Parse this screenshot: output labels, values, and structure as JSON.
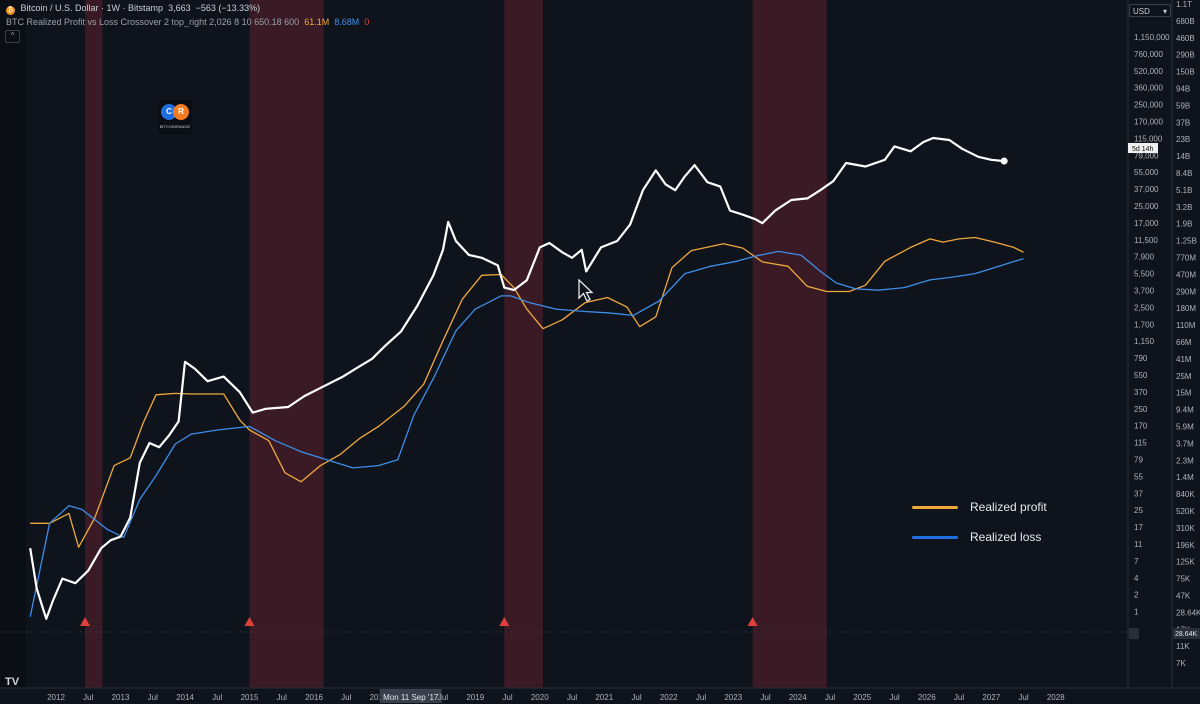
{
  "header": {
    "symbol": "Bitcoin / U.S. Dollar · 1W · Bitstamp",
    "price": "3,663",
    "change": "−563 (−13.33%)",
    "indicator": "BTC Realized Profit vs Loss Crossover 2 top_right 2,026 8 10 650.18 600",
    "ind_profit_value": "61.1M",
    "ind_loss_value": "8.68M",
    "ind_zero": "0",
    "chevron": "^",
    "currency": "USD",
    "currency_arrow": "▾"
  },
  "logo": {
    "mark_left": "C",
    "mark_right": "R",
    "caption": "BITCOINRANGE"
  },
  "colors": {
    "price": "#ffffff",
    "profit": "#f0a83c",
    "loss": "#3d8ee8",
    "band": "#4a1f28",
    "marker": "#e0403c",
    "bg": "#0f131c"
  },
  "chart_data": {
    "type": "line",
    "x_axis": {
      "ticks": [
        "2012",
        "Jul",
        "2013",
        "Jul",
        "2014",
        "Jul",
        "2015",
        "Jul",
        "2016",
        "Jul",
        "2017",
        "Mon 11 Sep '17",
        "Jul",
        "2019",
        "Jul",
        "2020",
        "Jul",
        "2021",
        "Jul",
        "2022",
        "Jul",
        "2023",
        "Jul",
        "2024",
        "Jul",
        "2025",
        "Jul",
        "2026",
        "Jul",
        "2027",
        "Jul",
        "2028"
      ],
      "range": [
        2011.3,
        2029.2
      ]
    },
    "y_axis_price": {
      "scale": "log",
      "ticks": [
        "1,150,000",
        "760,000",
        "520,000",
        "360,000",
        "250,000",
        "170,000",
        "115,000",
        "79,000",
        "55,000",
        "37,000",
        "25,000",
        "17,000",
        "11,500",
        "7,900",
        "5,500",
        "3,700",
        "2,500",
        "1,700",
        "1,150",
        "790",
        "550",
        "370",
        "250",
        "170",
        "115",
        "79",
        "55",
        "37",
        "25",
        "17",
        "11",
        "7",
        "4",
        "2",
        "1"
      ],
      "current_label": "5d 14h"
    },
    "y_axis_realized": {
      "scale": "log",
      "ticks": [
        "1.1T",
        "680B",
        "460B",
        "290B",
        "150B",
        "94B",
        "59B",
        "37B",
        "23B",
        "14B",
        "8.4B",
        "5.1B",
        "3.2B",
        "1.9B",
        "1.25B",
        "770M",
        "470M",
        "290M",
        "180M",
        "110M",
        "66M",
        "41M",
        "25M",
        "15M",
        "9.4M",
        "5.9M",
        "3.7M",
        "2.3M",
        "1.4M",
        "840K",
        "520K",
        "310K",
        "196K",
        "125K",
        "75K",
        "47K",
        "28.64K",
        "17K",
        "11K",
        "7K"
      ],
      "current_label": "28.64K"
    },
    "series": [
      {
        "name": "Realized profit",
        "points": [
          [
            2011.6,
            0.3
          ],
          [
            2011.9,
            0.3
          ],
          [
            2012.2,
            0.4
          ],
          [
            2012.35,
            0.15
          ],
          [
            2012.6,
            0.35
          ],
          [
            2012.9,
            1.6
          ],
          [
            2013.15,
            2.0
          ],
          [
            2013.35,
            5.5
          ],
          [
            2013.55,
            12.5
          ],
          [
            2013.85,
            13.0
          ],
          [
            2014.1,
            12.8
          ],
          [
            2014.6,
            12.8
          ],
          [
            2014.85,
            6
          ],
          [
            2015.0,
            4.5
          ],
          [
            2015.3,
            3.3
          ],
          [
            2015.55,
            1.3
          ],
          [
            2015.8,
            1.0
          ],
          [
            2016.1,
            1.6
          ],
          [
            2016.4,
            2.2
          ],
          [
            2016.7,
            3.5
          ],
          [
            2017.0,
            5.0
          ],
          [
            2017.4,
            9.0
          ],
          [
            2017.7,
            17
          ],
          [
            2018.0,
            60
          ],
          [
            2018.3,
            200
          ],
          [
            2018.6,
            400
          ],
          [
            2018.9,
            410
          ],
          [
            2019.1,
            280
          ],
          [
            2019.3,
            150
          ],
          [
            2019.55,
            85
          ],
          [
            2019.85,
            110
          ],
          [
            2020.2,
            180
          ],
          [
            2020.55,
            210
          ],
          [
            2020.85,
            160
          ],
          [
            2021.05,
            90
          ],
          [
            2021.3,
            120
          ],
          [
            2021.55,
            500
          ],
          [
            2021.85,
            820
          ],
          [
            2022.35,
            1000
          ],
          [
            2022.65,
            880
          ],
          [
            2022.95,
            590
          ],
          [
            2023.35,
            520
          ],
          [
            2023.65,
            290
          ],
          [
            2023.95,
            250
          ],
          [
            2024.3,
            250
          ],
          [
            2024.55,
            300
          ],
          [
            2024.85,
            600
          ],
          [
            2025.25,
            900
          ],
          [
            2025.55,
            1150
          ],
          [
            2025.75,
            1050
          ],
          [
            2026.0,
            1150
          ],
          [
            2026.25,
            1200
          ],
          [
            2026.55,
            1050
          ],
          [
            2026.85,
            900
          ],
          [
            2027.0,
            780
          ]
        ]
      },
      {
        "name": "Realized loss",
        "points": [
          [
            2011.6,
            0.02
          ],
          [
            2011.9,
            0.3
          ],
          [
            2012.2,
            0.5
          ],
          [
            2012.4,
            0.45
          ],
          [
            2012.8,
            0.25
          ],
          [
            2013.05,
            0.2
          ],
          [
            2013.3,
            0.6
          ],
          [
            2013.55,
            1.2
          ],
          [
            2013.85,
            3.0
          ],
          [
            2014.1,
            4.0
          ],
          [
            2014.5,
            4.5
          ],
          [
            2015.0,
            5.0
          ],
          [
            2015.4,
            3.3
          ],
          [
            2015.8,
            2.4
          ],
          [
            2016.2,
            1.9
          ],
          [
            2016.6,
            1.5
          ],
          [
            2017.0,
            1.6
          ],
          [
            2017.3,
            1.9
          ],
          [
            2017.55,
            7
          ],
          [
            2017.85,
            20
          ],
          [
            2018.2,
            80
          ],
          [
            2018.5,
            150
          ],
          [
            2018.9,
            220
          ],
          [
            2019.05,
            220
          ],
          [
            2019.35,
            180
          ],
          [
            2019.75,
            150
          ],
          [
            2020.2,
            140
          ],
          [
            2020.55,
            135
          ],
          [
            2020.95,
            125
          ],
          [
            2021.35,
            190
          ],
          [
            2021.75,
            420
          ],
          [
            2022.15,
            520
          ],
          [
            2022.55,
            600
          ],
          [
            2022.85,
            700
          ],
          [
            2023.2,
            800
          ],
          [
            2023.55,
            720
          ],
          [
            2023.85,
            450
          ],
          [
            2024.1,
            320
          ],
          [
            2024.4,
            270
          ],
          [
            2024.75,
            260
          ],
          [
            2025.15,
            280
          ],
          [
            2025.55,
            350
          ],
          [
            2025.9,
            380
          ],
          [
            2026.25,
            420
          ],
          [
            2026.55,
            500
          ],
          [
            2027.0,
            650
          ]
        ]
      },
      {
        "name": "Bitcoin price",
        "points": [
          [
            2011.6,
            10
          ],
          [
            2011.7,
            4
          ],
          [
            2011.8,
            2.5
          ],
          [
            2011.85,
            2
          ],
          [
            2011.95,
            3.0
          ],
          [
            2012.1,
            5
          ],
          [
            2012.3,
            4.5
          ],
          [
            2012.5,
            6
          ],
          [
            2012.7,
            10
          ],
          [
            2012.85,
            12
          ],
          [
            2013.0,
            13
          ],
          [
            2013.15,
            20
          ],
          [
            2013.3,
            70
          ],
          [
            2013.45,
            110
          ],
          [
            2013.6,
            100
          ],
          [
            2013.75,
            130
          ],
          [
            2013.9,
            180
          ],
          [
            2014.0,
            700
          ],
          [
            2014.15,
            600
          ],
          [
            2014.35,
            450
          ],
          [
            2014.6,
            500
          ],
          [
            2014.85,
            350
          ],
          [
            2015.05,
            220
          ],
          [
            2015.25,
            240
          ],
          [
            2015.6,
            250
          ],
          [
            2015.85,
            320
          ],
          [
            2016.15,
            400
          ],
          [
            2016.45,
            500
          ],
          [
            2016.65,
            600
          ],
          [
            2016.9,
            750
          ],
          [
            2017.1,
            1000
          ],
          [
            2017.35,
            1400
          ],
          [
            2017.6,
            2500
          ],
          [
            2017.85,
            5000
          ],
          [
            2018.0,
            9000
          ],
          [
            2018.08,
            17000
          ],
          [
            2018.2,
            11000
          ],
          [
            2018.4,
            8000
          ],
          [
            2018.6,
            7500
          ],
          [
            2018.85,
            6300
          ],
          [
            2018.95,
            3800
          ],
          [
            2019.1,
            3600
          ],
          [
            2019.3,
            4500
          ],
          [
            2019.5,
            9500
          ],
          [
            2019.65,
            10500
          ],
          [
            2019.85,
            8500
          ],
          [
            2020.0,
            7500
          ],
          [
            2020.15,
            9000
          ],
          [
            2020.22,
            5500
          ],
          [
            2020.45,
            9500
          ],
          [
            2020.7,
            11000
          ],
          [
            2020.9,
            16000
          ],
          [
            2021.1,
            35000
          ],
          [
            2021.3,
            55000
          ],
          [
            2021.45,
            40000
          ],
          [
            2021.6,
            35000
          ],
          [
            2021.75,
            48000
          ],
          [
            2021.9,
            62000
          ],
          [
            2022.1,
            42000
          ],
          [
            2022.3,
            38000
          ],
          [
            2022.45,
            22000
          ],
          [
            2022.65,
            20000
          ],
          [
            2022.85,
            18000
          ],
          [
            2022.95,
            16500
          ],
          [
            2023.15,
            22000
          ],
          [
            2023.4,
            28000
          ],
          [
            2023.65,
            29000
          ],
          [
            2023.85,
            35000
          ],
          [
            2024.05,
            43000
          ],
          [
            2024.25,
            65000
          ],
          [
            2024.55,
            60000
          ],
          [
            2024.85,
            70000
          ],
          [
            2025.0,
            95000
          ],
          [
            2025.25,
            85000
          ],
          [
            2025.45,
            105000
          ],
          [
            2025.6,
            115000
          ],
          [
            2025.85,
            110000
          ],
          [
            2026.05,
            90000
          ],
          [
            2026.3,
            75000
          ],
          [
            2026.5,
            70000
          ],
          [
            2026.7,
            68000
          ]
        ]
      }
    ],
    "legend": {
      "position": "bottom-right",
      "entries": [
        "Realized profit",
        "Realized loss"
      ]
    },
    "bear_bands": [
      [
        2012.45,
        2012.72
      ],
      [
        2015.0,
        2016.15
      ],
      [
        2018.95,
        2019.55
      ],
      [
        2022.8,
        2023.95
      ]
    ],
    "crossover_markers": [
      2012.45,
      2015.0,
      2018.95,
      2022.8
    ],
    "grid": false
  }
}
